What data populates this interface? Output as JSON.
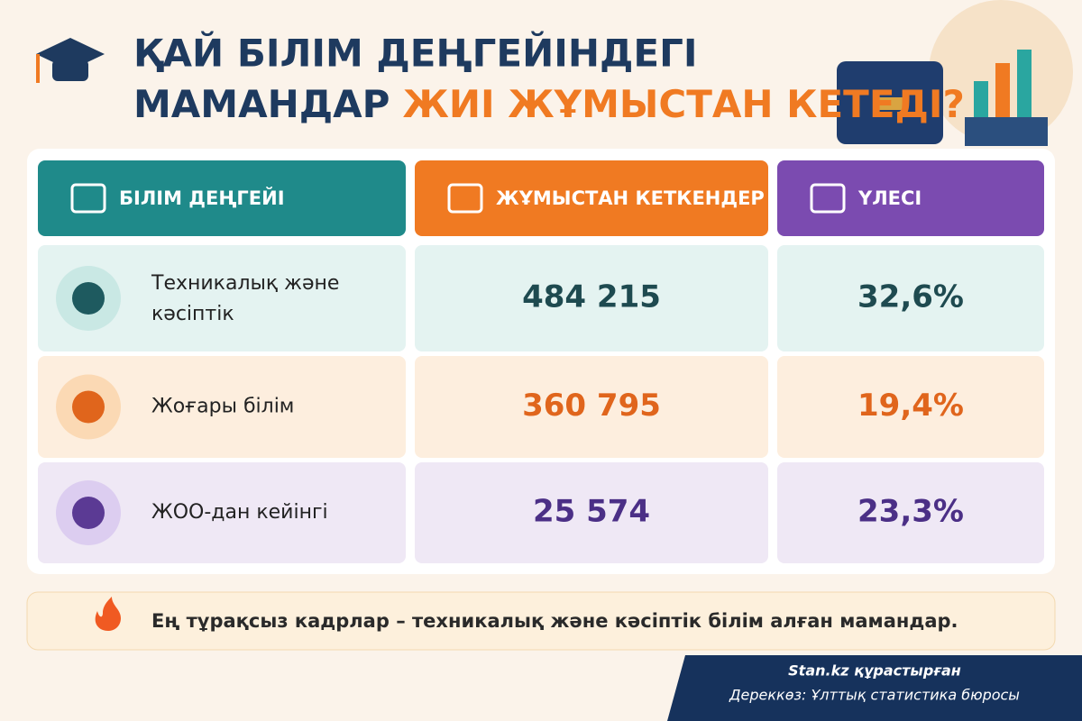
{
  "header": {
    "title_line1": "ҚАЙ БІЛІМ ДЕҢГЕЙІНДЕГІ",
    "title_line2_dark": "МАМАНДАР",
    "title_line2_accent": "ЖИІ ЖҰМЫСТАН КЕТЕДІ?"
  },
  "table": {
    "columns": [
      "БІЛІМ ДЕҢГЕЙІ",
      "ЖҰМЫСТАН КЕТКЕНДЕР",
      "ҮЛЕСІ"
    ],
    "rows": [
      [
        "Техникалық және кәсіптік",
        "484 215",
        "32,6%"
      ],
      [
        "Жоғары білім",
        "360 795",
        "19,4%"
      ],
      [
        "ЖОО-дан кейінгі",
        "25 574",
        "23,3%"
      ]
    ]
  },
  "note": "Ең тұрақсыз кадрлар – техникалық және кәсіптік білім алған мамандар.",
  "credit": {
    "author": "Stan.kz құрастырған",
    "source": "Дереккөз: Ұлттық статистика бюросы"
  }
}
